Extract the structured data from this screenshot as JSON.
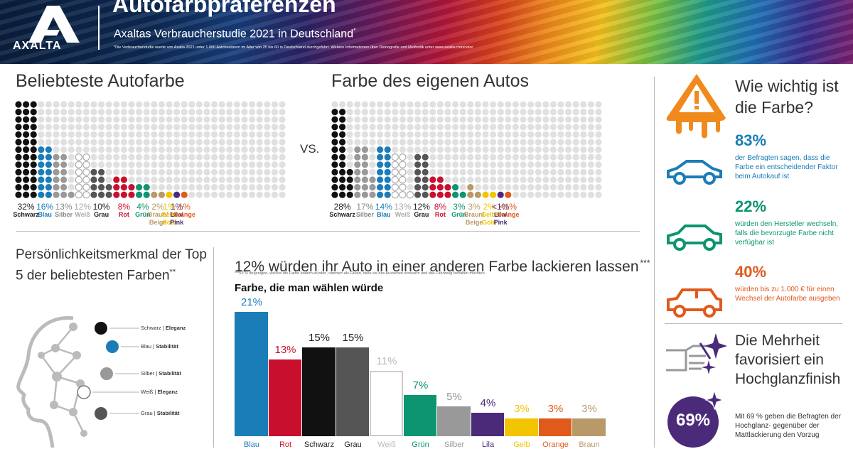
{
  "header": {
    "brand": "AXALTA",
    "title": "Autofarbpräferenzen",
    "subtitle": "Axaltas Verbraucherstudie 2021 in Deutschland",
    "subtitle_mark": "*",
    "footnote": "*Die Verbraucherstudie wurde von Axalta 2021 unter 1.000 Autobesitzern im Alter von 25 bis 60 in Deutschland durchgeführt. Weitere Informationen über Demografie und Methodik unter www.axalta.com/color"
  },
  "popular": {
    "title": "Beliebteste Autofarbe",
    "items": [
      {
        "pct": "32%",
        "name": "Schwarz",
        "value": 32,
        "color": "#111111"
      },
      {
        "pct": "16%",
        "name": "Blau",
        "value": 16,
        "color": "#1a7db8"
      },
      {
        "pct": "13%",
        "name": "Silber",
        "value": 13,
        "color": "#999999"
      },
      {
        "pct": "12%",
        "name": "Weiß",
        "value": 12,
        "color": "#ffffff"
      },
      {
        "pct": "10%",
        "name": "Grau",
        "value": 10,
        "color": "#555555"
      },
      {
        "pct": "8%",
        "name": "Rot",
        "value": 8,
        "color": "#c8102e"
      },
      {
        "pct": "4%",
        "name": "Grün",
        "value": 4,
        "color": "#0d9470"
      },
      {
        "pct": "2%",
        "name": "Braun/\nBeige",
        "value": 2,
        "color": "#b89968"
      },
      {
        "pct": "1%",
        "name": "Gelb/\nGold",
        "value": 1,
        "color": "#f2c500"
      },
      {
        "pct": "1%",
        "name": "Lila/\nPink",
        "value": 1,
        "color": "#4b2a7a"
      },
      {
        "pct": "1%",
        "name": "Orange",
        "value": 1,
        "color": "#e05a1b"
      }
    ]
  },
  "vs_label": "VS.",
  "own": {
    "title": "Farbe des eigenen Autos",
    "items": [
      {
        "pct": "28%",
        "name": "Schwarz",
        "value": 28,
        "color": "#111111"
      },
      {
        "pct": "17%",
        "name": "Silber",
        "value": 17,
        "color": "#999999"
      },
      {
        "pct": "14%",
        "name": "Blau",
        "value": 14,
        "color": "#1a7db8"
      },
      {
        "pct": "13%",
        "name": "Weiß",
        "value": 13,
        "color": "#ffffff"
      },
      {
        "pct": "12%",
        "name": "Grau",
        "value": 12,
        "color": "#555555"
      },
      {
        "pct": "8%",
        "name": "Rot",
        "value": 8,
        "color": "#c8102e"
      },
      {
        "pct": "3%",
        "name": "Grün",
        "value": 3,
        "color": "#0d9470"
      },
      {
        "pct": "3%",
        "name": "Braun/\nBeige",
        "value": 3,
        "color": "#b89968"
      },
      {
        "pct": "2%",
        "name": "Gelb/\nGold",
        "value": 2,
        "color": "#f2c500"
      },
      {
        "pct": "<1%",
        "name": "Lila/\nPink",
        "value": 1,
        "color": "#4b2a7a"
      },
      {
        "pct": "<1%",
        "name": "Orange",
        "value": 1,
        "color": "#e05a1b"
      }
    ]
  },
  "traits": {
    "title": "Persönlichkeitsmerkmal der Top 5 der beliebtesten Farben",
    "title_mark": "**",
    "items": [
      {
        "color": "Schwarz",
        "trait": "Eleganz",
        "fill": "#111111"
      },
      {
        "color": "Blau",
        "trait": "Stabilität",
        "fill": "#1a7db8"
      },
      {
        "color": "Silber",
        "trait": "Stabilität",
        "fill": "#999999"
      },
      {
        "color": "Weiß",
        "trait": "Eleganz",
        "fill": "#ffffff"
      },
      {
        "color": "Grau",
        "trait": "Stabilität",
        "fill": "#555555"
      }
    ]
  },
  "repaint": {
    "headline": "12% würden ihr Auto in einer anderen Farbe lackieren lassen",
    "mark": "***",
    "footnote": "***53 % derjenigen, welche die Farbe ändern würden, nannten als Grund, dass sie das Aussehen erneuern und das Fahrzeug behalten möchten.",
    "chart_title": "Farbe, die man wählen würde"
  },
  "chart_data": {
    "type": "bar",
    "title": "Farbe, die man wählen würde",
    "categories": [
      "Blau",
      "Rot",
      "Schwarz",
      "Grau",
      "Weiß",
      "Grün",
      "Silber",
      "Lila",
      "Gelb",
      "Orange",
      "Braun"
    ],
    "values": [
      21,
      13,
      15,
      15,
      11,
      7,
      5,
      4,
      3,
      3,
      3
    ],
    "labels": [
      "21%",
      "13%",
      "15%",
      "15%",
      "11%",
      "7%",
      "5%",
      "4%",
      "3%",
      "3%",
      "3%"
    ],
    "colors": [
      "#1a7db8",
      "#c8102e",
      "#111111",
      "#555555",
      "#ffffff",
      "#0d9470",
      "#999999",
      "#4b2a7a",
      "#f2c500",
      "#e05a1b",
      "#b89968"
    ],
    "ylim": [
      0,
      21
    ]
  },
  "importance": {
    "title": "Wie wichtig ist die Farbe?",
    "stats": [
      {
        "value": "83%",
        "desc": "der Befragten sagen, dass die Farbe ein entscheidender Faktor beim Autokauf ist",
        "color": "#1a7db8"
      },
      {
        "value": "22%",
        "desc": "würden den Hersteller wechseln, falls die bevorzugte Farbe nicht verfügbar ist",
        "color": "#0d9470"
      },
      {
        "value": "40%",
        "desc": "würden bis zu 1.000 € für einen Wechsel der Autofarbe ausgeben",
        "color": "#e05a1b"
      }
    ]
  },
  "gloss": {
    "title": "Die Mehrheit favorisiert ein Hochglanzfinish",
    "value": "69%",
    "desc": "Mit 69 % geben die Befragten der Hochglanz- gegenüber der Mattlackierung den Vorzug"
  }
}
